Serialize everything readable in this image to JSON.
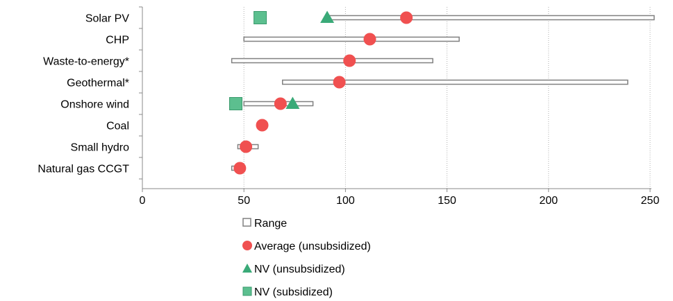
{
  "chart_data": {
    "type": "range-dot",
    "orientation": "horizontal",
    "title": "",
    "xlabel": "",
    "ylabel": "",
    "xlim": [
      0,
      250
    ],
    "xticks": [
      0,
      50,
      100,
      150,
      200,
      250
    ],
    "grid": "vertical-dotted",
    "legend_position": "bottom",
    "categories": [
      "Solar PV",
      "CHP",
      "Waste-to-energy*",
      "Geothermal*",
      "Onshore wind",
      "Coal",
      "Small hydro",
      "Natural gas CCGT"
    ],
    "series": [
      {
        "name": "Range",
        "marker": "hollow-bar",
        "color": "#808080",
        "values": [
          [
            92,
            252
          ],
          [
            50,
            156
          ],
          [
            44,
            143
          ],
          [
            69,
            239
          ],
          [
            50,
            84
          ],
          null,
          [
            47,
            57
          ],
          [
            44,
            48
          ]
        ]
      },
      {
        "name": "Average (unsubsidized)",
        "marker": "circle",
        "color": "#f05050",
        "values": [
          130,
          112,
          102,
          97,
          68,
          59,
          51,
          48
        ]
      },
      {
        "name": "NV (unsubsidized)",
        "marker": "triangle",
        "color": "#3aaa78",
        "values": [
          91,
          null,
          null,
          null,
          74,
          null,
          null,
          null
        ]
      },
      {
        "name": "NV (subsidized)",
        "marker": "square",
        "color": "#5cbf8f",
        "values": [
          58,
          null,
          null,
          null,
          46,
          null,
          null,
          null
        ]
      }
    ]
  }
}
